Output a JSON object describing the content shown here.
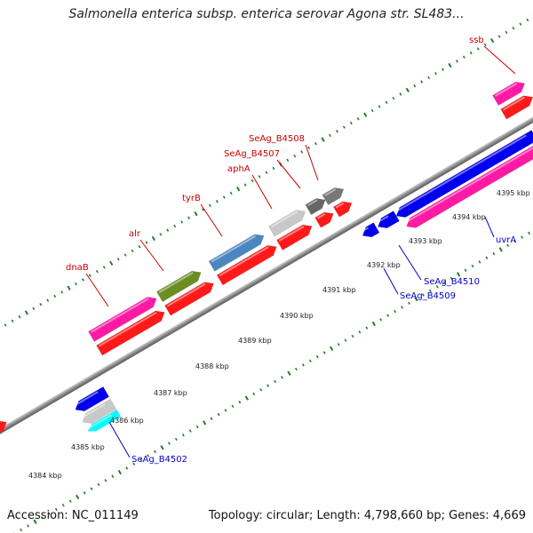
{
  "title": "Salmonella enterica subsp. enterica serovar Agona str. SL483...",
  "footer": {
    "accession": "Accession: NC_011149",
    "summary": "Topology: circular; Length: 4,798,660 bp; Genes: 4,669"
  },
  "colors": {
    "forward_label": "#cc0000",
    "reverse_label": "#0000cc",
    "backbone": "#888888",
    "tick": "#2a7a2a"
  },
  "kbp_ticks": [
    "4384 kbp",
    "4385 kbp",
    "4386 kbp",
    "4387 kbp",
    "4388 kbp",
    "4389 kbp",
    "4390 kbp",
    "4391 kbp",
    "4392 kbp",
    "4393 kbp",
    "4394 kbp",
    "4395 kbp"
  ],
  "forward_labels": [
    "dnaB",
    "alr",
    "tyrB",
    "aphA",
    "SeAg_B4507",
    "SeAg_B4508",
    "ssb"
  ],
  "reverse_labels": [
    "SeAg_B4502",
    "SeAg_B4509",
    "SeAg_B4510",
    "uvrA"
  ]
}
